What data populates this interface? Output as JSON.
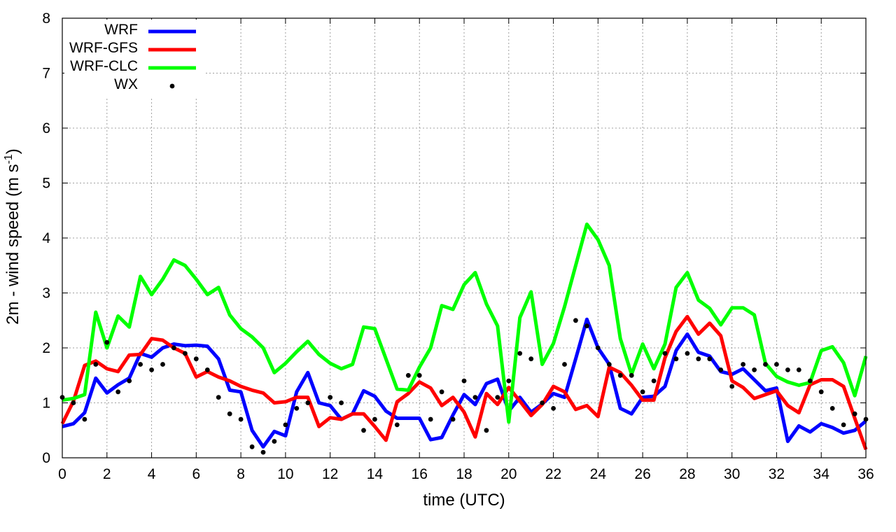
{
  "chart_data": {
    "type": "line",
    "title": "",
    "xlabel": "time (UTC)",
    "ylabel": "2m - wind speed  (m s",
    "ylabel_sup": "-1",
    "ylabel_close": ")",
    "xlim": [
      0,
      36
    ],
    "ylim": [
      0,
      8
    ],
    "xticks": [
      "0",
      "2",
      "4",
      "6",
      "8",
      "10",
      "12",
      "14",
      "16",
      "18",
      "20",
      "22",
      "24",
      "26",
      "28",
      "30",
      "32",
      "34",
      "36"
    ],
    "yticks": [
      "0",
      "1",
      "2",
      "3",
      "4",
      "5",
      "6",
      "7",
      "8"
    ],
    "grid": true,
    "legend_position": "top-left",
    "x": [
      0,
      0.5,
      1,
      1.5,
      2,
      2.5,
      3,
      3.5,
      4,
      4.5,
      5,
      5.5,
      6,
      6.5,
      7,
      7.5,
      8,
      8.5,
      9,
      9.5,
      10,
      10.5,
      11,
      11.5,
      12,
      12.5,
      13,
      13.5,
      14,
      14.5,
      15,
      15.5,
      16,
      16.5,
      17,
      17.5,
      18,
      18.5,
      19,
      19.5,
      20,
      20.5,
      21,
      21.5,
      22,
      22.5,
      23,
      23.5,
      24,
      24.5,
      25,
      25.5,
      26,
      26.5,
      27,
      27.5,
      28,
      28.5,
      29,
      29.5,
      30,
      30.5,
      31,
      31.5,
      32,
      32.5,
      33,
      33.5,
      34,
      34.5,
      35,
      35.5,
      36
    ],
    "series": [
      {
        "name": "WRF",
        "color": "#0000ff",
        "style": "line",
        "values": [
          0.57,
          0.62,
          0.82,
          1.45,
          1.18,
          1.33,
          1.45,
          1.9,
          1.83,
          2.0,
          2.07,
          2.04,
          2.05,
          2.03,
          1.8,
          1.23,
          1.2,
          0.5,
          0.2,
          0.48,
          0.4,
          1.2,
          1.55,
          1.0,
          0.95,
          0.7,
          0.8,
          1.22,
          1.12,
          0.85,
          0.72,
          0.72,
          0.72,
          0.33,
          0.37,
          0.78,
          1.15,
          0.97,
          1.35,
          1.43,
          0.85,
          1.1,
          0.83,
          0.98,
          1.17,
          1.1,
          1.8,
          2.52,
          2.0,
          1.7,
          0.9,
          0.8,
          1.1,
          1.12,
          1.3,
          1.95,
          2.25,
          1.92,
          1.85,
          1.57,
          1.52,
          1.62,
          1.42,
          1.22,
          1.27,
          0.3,
          0.58,
          0.47,
          0.62,
          0.55,
          0.45,
          0.5,
          0.67
        ]
      },
      {
        "name": "WRF-GFS",
        "color": "#ff0000",
        "style": "line",
        "values": [
          0.62,
          1.03,
          1.68,
          1.76,
          1.62,
          1.57,
          1.87,
          1.88,
          2.17,
          2.14,
          2.0,
          1.9,
          1.47,
          1.57,
          1.47,
          1.4,
          1.3,
          1.23,
          1.18,
          1.0,
          1.02,
          1.1,
          1.1,
          0.57,
          0.73,
          0.7,
          0.8,
          0.8,
          0.57,
          0.32,
          1.02,
          1.17,
          1.38,
          1.27,
          0.95,
          1.1,
          0.83,
          0.38,
          1.17,
          0.97,
          1.28,
          1.03,
          0.77,
          0.97,
          1.3,
          1.2,
          0.88,
          0.95,
          0.75,
          1.65,
          1.55,
          1.32,
          1.05,
          1.05,
          1.82,
          2.3,
          2.57,
          2.25,
          2.45,
          2.22,
          1.4,
          1.28,
          1.08,
          1.15,
          1.22,
          0.95,
          0.82,
          1.33,
          1.42,
          1.42,
          1.3,
          0.72,
          0.15
        ]
      },
      {
        "name": "WRF-CLC",
        "color": "#00ff00",
        "style": "line",
        "values": [
          1.05,
          1.08,
          1.15,
          2.65,
          2.0,
          2.58,
          2.38,
          3.3,
          2.97,
          3.25,
          3.6,
          3.5,
          3.25,
          2.97,
          3.1,
          2.6,
          2.35,
          2.2,
          2.0,
          1.55,
          1.72,
          1.93,
          2.12,
          1.88,
          1.72,
          1.62,
          1.7,
          2.38,
          2.35,
          1.8,
          1.25,
          1.23,
          1.65,
          2.0,
          2.77,
          2.7,
          3.15,
          3.37,
          2.8,
          2.4,
          0.65,
          2.55,
          3.02,
          1.7,
          2.08,
          2.75,
          3.5,
          4.25,
          3.97,
          3.5,
          2.17,
          1.52,
          2.07,
          1.62,
          2.07,
          3.1,
          3.37,
          2.87,
          2.72,
          2.42,
          2.73,
          2.73,
          2.6,
          1.72,
          1.48,
          1.38,
          1.32,
          1.37,
          1.95,
          2.02,
          1.73,
          1.13,
          1.85
        ]
      },
      {
        "name": "WX",
        "color": "#000000",
        "style": "points",
        "x": [
          0,
          0.5,
          1,
          1.5,
          2,
          2.5,
          3,
          3.5,
          4,
          4.5,
          5,
          5.5,
          6,
          6.5,
          7,
          7.5,
          8,
          8.5,
          9,
          9.5,
          10,
          10.5,
          11,
          12,
          12.5,
          13.5,
          14,
          15,
          15.5,
          16,
          16.5,
          17,
          17.5,
          18,
          18.5,
          19,
          19.5,
          20,
          20.5,
          21,
          21.5,
          22,
          22.5,
          23,
          23.5,
          24,
          24.5,
          25,
          25.5,
          26,
          26.5,
          27,
          27.5,
          28,
          28.5,
          29,
          29.5,
          30,
          30.5,
          31,
          31.5,
          32,
          32.5,
          33,
          33.5,
          34,
          34.5,
          35,
          35.5,
          36
        ],
        "values": [
          1.1,
          1.0,
          0.7,
          1.7,
          2.1,
          1.2,
          1.4,
          1.7,
          1.6,
          1.7,
          2.0,
          1.9,
          1.8,
          1.6,
          1.1,
          0.8,
          0.7,
          0.2,
          0.1,
          0.3,
          0.6,
          0.9,
          1.0,
          1.1,
          1.0,
          0.5,
          0.7,
          0.6,
          1.5,
          1.5,
          0.7,
          1.2,
          0.7,
          1.4,
          1.1,
          0.5,
          1.1,
          1.4,
          1.9,
          1.8,
          1.0,
          0.9,
          1.7,
          2.5,
          2.4,
          2.0,
          1.7,
          1.5,
          1.5,
          1.2,
          1.4,
          1.9,
          1.8,
          1.9,
          1.8,
          1.8,
          1.6,
          1.3,
          1.7,
          1.6,
          1.7,
          1.7,
          1.6,
          1.6,
          1.4,
          1.2,
          0.9,
          0.6,
          0.8,
          0.7
        ]
      }
    ]
  }
}
